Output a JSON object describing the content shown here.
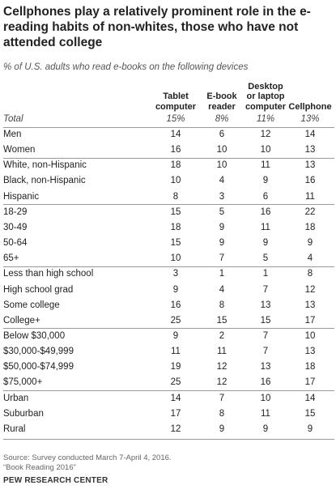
{
  "chart_data": {
    "type": "table",
    "title": "Cellphones play a relatively prominent role in the e-reading habits of non-whites, those who have not attended college",
    "subtitle": "% of U.S. adults who read e-books on the following devices",
    "columns": [
      "Tablet computer",
      "E-book reader",
      "Desktop or laptop computer",
      "Cellphone"
    ],
    "column_lines": [
      [
        "Tablet",
        "computer"
      ],
      [
        "E-book",
        "reader"
      ],
      [
        "Desktop",
        "or laptop",
        "computer"
      ],
      [
        "Cellphone"
      ]
    ],
    "total": {
      "label": "Total",
      "values": [
        "15%",
        "8%",
        "11%",
        "13%"
      ]
    },
    "groups": [
      {
        "rows": [
          {
            "label": "Men",
            "values": [
              14,
              6,
              12,
              14
            ]
          },
          {
            "label": "Women",
            "values": [
              16,
              10,
              10,
              13
            ]
          }
        ]
      },
      {
        "rows": [
          {
            "label": "White, non-Hispanic",
            "values": [
              18,
              10,
              11,
              13
            ]
          },
          {
            "label": "Black, non-Hispanic",
            "values": [
              10,
              4,
              9,
              16
            ]
          },
          {
            "label": "Hispanic",
            "values": [
              8,
              3,
              6,
              11
            ]
          }
        ]
      },
      {
        "rows": [
          {
            "label": "18-29",
            "values": [
              15,
              5,
              16,
              22
            ]
          },
          {
            "label": "30-49",
            "values": [
              18,
              9,
              11,
              18
            ]
          },
          {
            "label": "50-64",
            "values": [
              15,
              9,
              9,
              9
            ]
          },
          {
            "label": "65+",
            "values": [
              10,
              7,
              5,
              4
            ]
          }
        ]
      },
      {
        "rows": [
          {
            "label": "Less than high school",
            "values": [
              3,
              1,
              1,
              8
            ]
          },
          {
            "label": "High school grad",
            "values": [
              9,
              4,
              7,
              12
            ]
          },
          {
            "label": "Some college",
            "values": [
              16,
              8,
              13,
              13
            ]
          },
          {
            "label": "College+",
            "values": [
              25,
              15,
              15,
              17
            ]
          }
        ]
      },
      {
        "rows": [
          {
            "label": "Below $30,000",
            "values": [
              9,
              2,
              7,
              10
            ]
          },
          {
            "label": "$30,000-$49,999",
            "values": [
              11,
              11,
              7,
              13
            ]
          },
          {
            "label": "$50,000-$74,999",
            "values": [
              19,
              12,
              13,
              18
            ]
          },
          {
            "label": "$75,000+",
            "values": [
              25,
              12,
              16,
              17
            ]
          }
        ]
      },
      {
        "rows": [
          {
            "label": "Urban",
            "values": [
              14,
              7,
              10,
              14
            ]
          },
          {
            "label": "Suburban",
            "values": [
              17,
              8,
              11,
              15
            ]
          },
          {
            "label": "Rural",
            "values": [
              12,
              9,
              9,
              9
            ]
          }
        ]
      }
    ]
  },
  "source_lines": [
    "Source: Survey conducted March 7-April 4, 2016.",
    "“Book Reading 2016”"
  ],
  "brand": "PEW RESEARCH CENTER"
}
